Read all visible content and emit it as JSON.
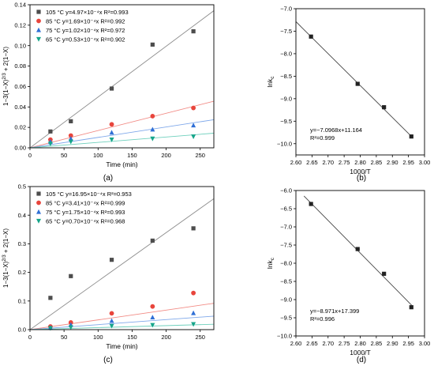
{
  "chart_data": [
    {
      "type": "scatter",
      "panel_label": "(a)",
      "xlabel": "Time (min)",
      "ylabel": "1−3(1−X)^2/3 + 2(1−X)",
      "xlim": [
        0,
        270
      ],
      "ylim": [
        0,
        0.14
      ],
      "xticks": [
        0,
        50,
        100,
        150,
        200,
        250
      ],
      "yticks": [
        0.0,
        0.02,
        0.04,
        0.06,
        0.08,
        0.1,
        0.12,
        0.14
      ],
      "ytick_decimals": 2,
      "legend_position": "top-left",
      "grid": false,
      "series": [
        {
          "name": "105 °C y=4.97×10⁻⁴x R²=0.993",
          "color": "#4d4d4d",
          "marker": "square",
          "fit_slope": 0.000497,
          "fit_color": "#8c8c8c",
          "points": [
            [
              30,
              0.016
            ],
            [
              60,
              0.026
            ],
            [
              120,
              0.058
            ],
            [
              180,
              0.101
            ],
            [
              240,
              0.114
            ]
          ]
        },
        {
          "name": "85 °C y=1.69×10⁻⁴x R²=0.992",
          "color": "#e8453c",
          "marker": "circle",
          "fit_slope": 0.000169,
          "fit_color": "#f28b85",
          "points": [
            [
              30,
              0.008
            ],
            [
              60,
              0.012
            ],
            [
              120,
              0.023
            ],
            [
              180,
              0.031
            ],
            [
              240,
              0.039
            ]
          ]
        },
        {
          "name": "75 °C y=1.02×10⁻⁴x R²=0.972",
          "color": "#2f6fd6",
          "marker": "triangle-up",
          "fit_slope": 0.000102,
          "fit_color": "#7fa8ea",
          "points": [
            [
              30,
              0.006
            ],
            [
              60,
              0.009
            ],
            [
              120,
              0.015
            ],
            [
              180,
              0.018
            ],
            [
              240,
              0.022
            ]
          ]
        },
        {
          "name": "65 °C y=0.53×10⁻⁴x R²=0.902",
          "color": "#16a58a",
          "marker": "triangle-down",
          "fit_slope": 5.3e-05,
          "fit_color": "#6fd0bd",
          "points": [
            [
              30,
              0.004
            ],
            [
              60,
              0.006
            ],
            [
              120,
              0.008
            ],
            [
              180,
              0.009
            ],
            [
              240,
              0.011
            ]
          ]
        }
      ]
    },
    {
      "type": "scatter",
      "panel_label": "(b)",
      "xlabel": "1000/T",
      "ylabel": "lnkc",
      "xlim": [
        2.6,
        3.0
      ],
      "ylim": [
        -10.25,
        -7.0
      ],
      "xticks": [
        2.6,
        2.65,
        2.7,
        2.75,
        2.8,
        2.85,
        2.9,
        2.95,
        3.0
      ],
      "yticks": [
        -10.0,
        -9.5,
        -9.0,
        -8.5,
        -8.0,
        -7.5,
        -7.0
      ],
      "xtick_decimals": 2,
      "ytick_decimals": 1,
      "grid": false,
      "fit": {
        "slope": -7.0968,
        "intercept": 11.164,
        "x_range": [
          2.6,
          2.96
        ]
      },
      "annotation": [
        "y=−7.0968x+11.164",
        "R²=0.999"
      ],
      "series": [
        {
          "color": "#222222",
          "marker": "square",
          "points": [
            [
              2.647,
              -7.62
            ],
            [
              2.792,
              -8.67
            ],
            [
              2.874,
              -9.19
            ],
            [
              2.959,
              -9.84
            ]
          ]
        }
      ]
    },
    {
      "type": "scatter",
      "panel_label": "(c)",
      "xlabel": "Time (min)",
      "ylabel": "1−3(1−X)^2/3 + 2(1−X)",
      "xlim": [
        0,
        270
      ],
      "ylim": [
        0,
        0.5
      ],
      "xticks": [
        0,
        50,
        100,
        150,
        200,
        250
      ],
      "yticks": [
        0.0,
        0.1,
        0.2,
        0.3,
        0.4,
        0.5
      ],
      "ytick_decimals": 1,
      "legend_position": "top-left",
      "grid": false,
      "series": [
        {
          "name": "105 °C y=16.95×10⁻⁴x R²=0.953",
          "color": "#4d4d4d",
          "marker": "square",
          "fit_slope": 0.001695,
          "fit_color": "#8c8c8c",
          "points": [
            [
              30,
              0.111
            ],
            [
              60,
              0.187
            ],
            [
              120,
              0.244
            ],
            [
              180,
              0.311
            ],
            [
              240,
              0.354
            ]
          ]
        },
        {
          "name": "85 °C y=3.41×10⁻⁴x R²=0.999",
          "color": "#e8453c",
          "marker": "circle",
          "fit_slope": 0.000341,
          "fit_color": "#f28b85",
          "points": [
            [
              30,
              0.011
            ],
            [
              60,
              0.025
            ],
            [
              120,
              0.057
            ],
            [
              180,
              0.081
            ],
            [
              240,
              0.128
            ]
          ]
        },
        {
          "name": "75 °C y=1.75×10⁻⁴x R²=0.993",
          "color": "#2f6fd6",
          "marker": "triangle-up",
          "fit_slope": 0.000175,
          "fit_color": "#7fa8ea",
          "points": [
            [
              30,
              0.007
            ],
            [
              60,
              0.017
            ],
            [
              120,
              0.031
            ],
            [
              180,
              0.043
            ],
            [
              240,
              0.058
            ]
          ]
        },
        {
          "name": "65 °C y=0.70×10⁻⁴x R²=0.968",
          "color": "#16a58a",
          "marker": "triangle-down",
          "fit_slope": 7e-05,
          "fit_color": "#6fd0bd",
          "points": [
            [
              30,
              0.005
            ],
            [
              60,
              0.008
            ],
            [
              120,
              0.013
            ],
            [
              180,
              0.016
            ],
            [
              240,
              0.019
            ]
          ]
        }
      ]
    },
    {
      "type": "scatter",
      "panel_label": "(d)",
      "xlabel": "1000/T",
      "ylabel": "lnkc",
      "xlim": [
        2.6,
        3.0
      ],
      "ylim": [
        -10.0,
        -6.0
      ],
      "xticks": [
        2.6,
        2.65,
        2.7,
        2.75,
        2.8,
        2.85,
        2.9,
        2.95,
        3.0
      ],
      "yticks": [
        -10.0,
        -9.5,
        -9.0,
        -8.5,
        -8.0,
        -7.5,
        -7.0,
        -6.5,
        -6.0
      ],
      "xtick_decimals": 2,
      "ytick_decimals": 1,
      "grid": false,
      "fit": {
        "slope": -8.971,
        "intercept": 17.399,
        "x_range": [
          2.625,
          2.96
        ]
      },
      "annotation": [
        "y=−8.971x+17.399",
        "R²=0.996"
      ],
      "series": [
        {
          "color": "#222222",
          "marker": "square",
          "points": [
            [
              2.647,
              -6.37
            ],
            [
              2.792,
              -7.61
            ],
            [
              2.874,
              -8.29
            ],
            [
              2.959,
              -9.21
            ]
          ]
        }
      ]
    }
  ]
}
